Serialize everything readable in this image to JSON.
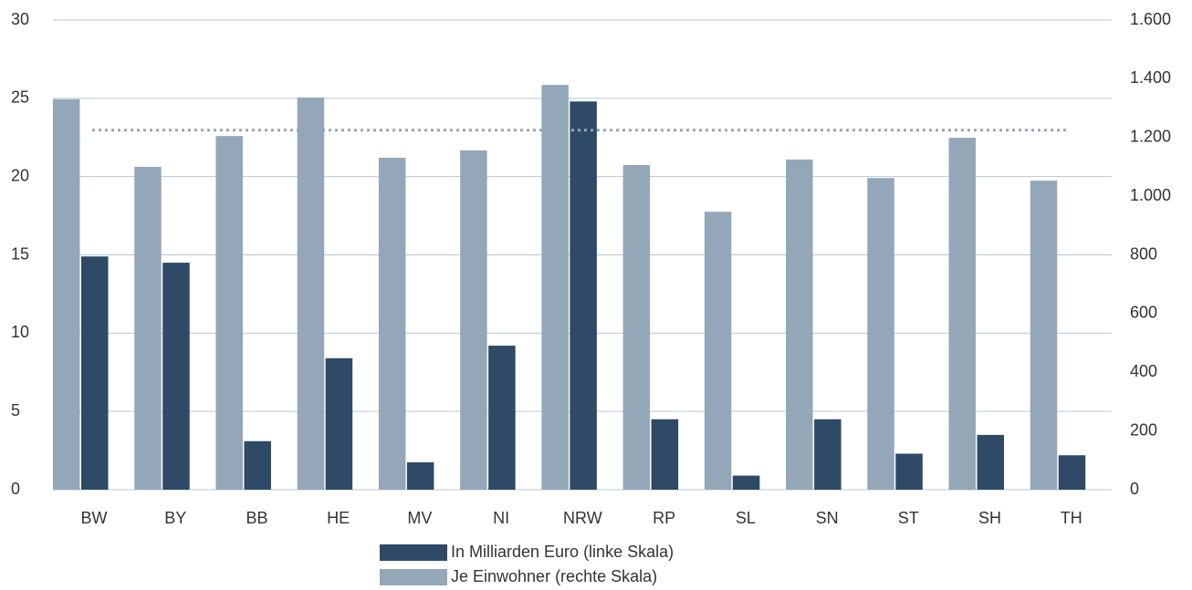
{
  "chart_data": {
    "type": "bar",
    "categories": [
      "BW",
      "BY",
      "BB",
      "HE",
      "MV",
      "NI",
      "NRW",
      "RP",
      "SL",
      "SN",
      "ST",
      "SH",
      "TH"
    ],
    "series": [
      {
        "name": "Je Einwohner (rechte Skala)",
        "color": "#94a7b8",
        "axis": "y2",
        "values": [
          1330,
          1100,
          1205,
          1336,
          1131,
          1156,
          1379,
          1106,
          947,
          1125,
          1062,
          1199,
          1053
        ]
      },
      {
        "name": "In Milliarden Euro (linke Skala)",
        "color": "#2e4a66",
        "values": [
          14.9,
          14.5,
          3.1,
          8.4,
          1.75,
          9.2,
          24.8,
          4.5,
          0.9,
          4.5,
          2.3,
          3.5,
          2.2
        ]
      }
    ],
    "reference_line": {
      "value": 1225,
      "axis": "y2",
      "color": "#94a7b8"
    },
    "ylim": [
      0,
      30
    ],
    "yticks": [
      0,
      5,
      10,
      15,
      20,
      25,
      30
    ],
    "y2lim": [
      0,
      1600
    ],
    "y2ticks": [
      0,
      200,
      400,
      600,
      800,
      {
        "value": 1000,
        "label": "1.000"
      },
      {
        "value": 1200,
        "label": "1.200"
      },
      {
        "value": 1400,
        "label": "1.400"
      },
      {
        "value": 1600,
        "label": "1.600"
      }
    ],
    "grid": true,
    "legend": "bottom"
  }
}
